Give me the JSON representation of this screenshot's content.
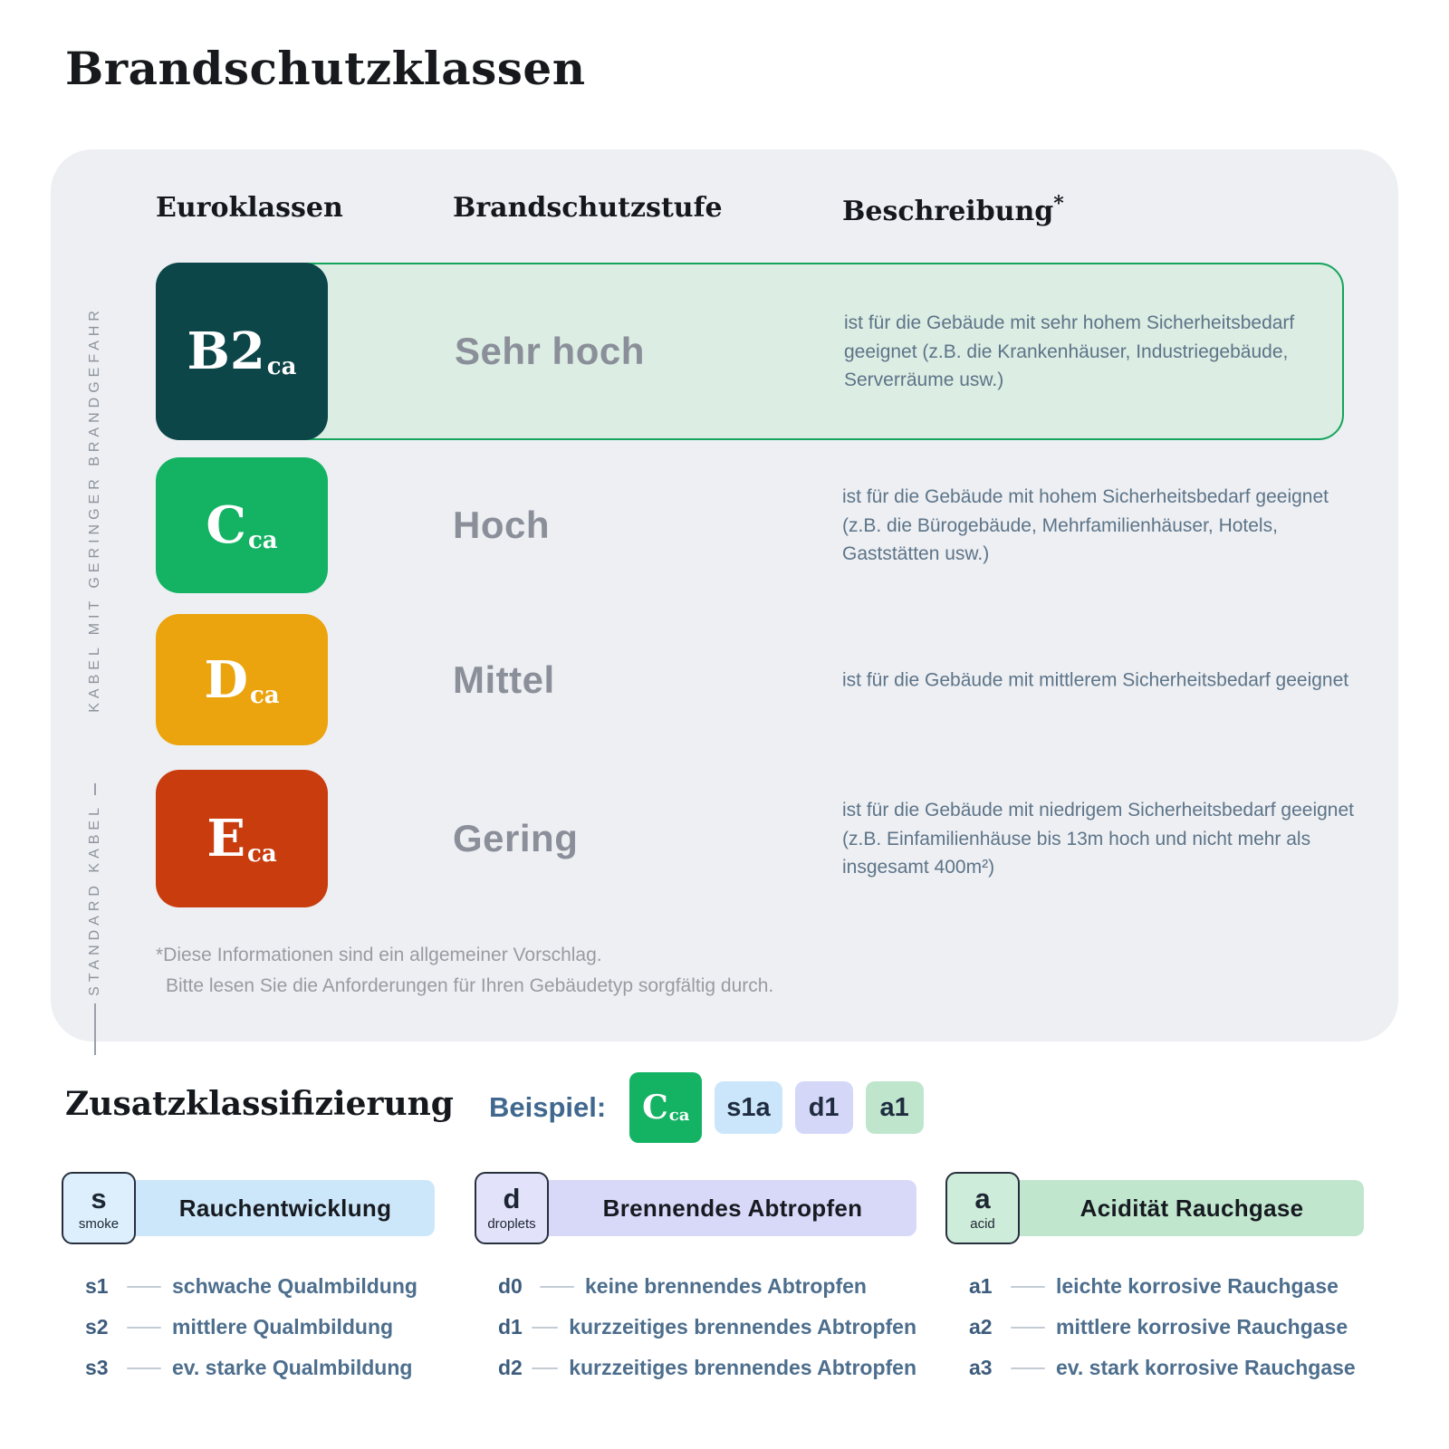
{
  "page": {
    "title": "Brandschutzklassen"
  },
  "panel": {
    "headers": {
      "col1": "Euroklassen",
      "col2": "Brandschutzstufe",
      "col3": "Beschreibung",
      "col3_sup": "*"
    },
    "side_labels": {
      "top": "KABEL MIT GERINGER BRANDGEFAHR",
      "bottom": "STANDARD KABEL"
    },
    "rows": [
      {
        "badge": "B2",
        "badge_sub": "ca",
        "stufe": "Sehr hoch",
        "desc": "ist für die Gebäude mit sehr hohem Sicherheitsbedarf geeignet (z.B. die Krankenhäuser, Industriegebäude, Serverräume usw.)"
      },
      {
        "badge": "C",
        "badge_sub": "ca",
        "stufe": "Hoch",
        "desc": "ist für die Gebäude mit hohem Sicherheitsbedarf geeignet (z.B. die Bürogebäude, Mehrfamilienhäuser, Hotels, Gaststätten usw.)"
      },
      {
        "badge": "D",
        "badge_sub": "ca",
        "stufe": "Mittel",
        "desc": "ist für die Gebäude mit mittlerem Sicherheitsbedarf geeignet"
      },
      {
        "badge": "E",
        "badge_sub": "ca",
        "stufe": "Gering",
        "desc": "ist für die Gebäude mit niedrigem Sicherheitsbedarf geeignet (z.B. Einfamilienhäuse bis 13m hoch und nicht mehr als insgesamt 400m²)"
      }
    ],
    "footnote_line1": "*Diese Informationen sind ein allgemeiner Vorschlag.",
    "footnote_line2": "Bitte lesen Sie die Anforderungen für Ihren Gebäudetyp sorgfältig durch."
  },
  "zusatz": {
    "title": "Zusatzklassifizierung",
    "beispiel_label": "Beispiel:",
    "chips": [
      {
        "text": "C",
        "sub": "ca"
      },
      {
        "text": "s1a"
      },
      {
        "text": "d1"
      },
      {
        "text": "a1"
      }
    ],
    "columns": [
      {
        "badge": "s",
        "badge_sub": "smoke",
        "header": "Rauchentwicklung",
        "items": [
          {
            "code": "s1",
            "text": "schwache Qualmbildung"
          },
          {
            "code": "s2",
            "text": "mittlere Qualmbildung"
          },
          {
            "code": "s3",
            "text": "ev. starke Qualmbildung"
          }
        ]
      },
      {
        "badge": "d",
        "badge_sub": "droplets",
        "header": "Brennendes Abtropfen",
        "items": [
          {
            "code": "d0",
            "text": "keine brennendes Abtropfen"
          },
          {
            "code": "d1",
            "text": "kurzzeitiges brennendes Abtropfen"
          },
          {
            "code": "d2",
            "text": "kurzzeitiges brennendes Abtropfen"
          }
        ]
      },
      {
        "badge": "a",
        "badge_sub": "acid",
        "header": "Acidität Rauchgase",
        "items": [
          {
            "code": "a1",
            "text": "leichte korrosive Rauchgase"
          },
          {
            "code": "a2",
            "text": "mittlere korrosive Rauchgase"
          },
          {
            "code": "a3",
            "text": "ev. stark korrosive Rauchgase"
          }
        ]
      }
    ]
  },
  "colors": {
    "b2ca": "#0d4649",
    "cca": "#14b363",
    "dca": "#eba40d",
    "eca": "#c93c0e",
    "row_highlight_bg": "#dcede3",
    "row_highlight_border": "#14a45c",
    "chip_c": "#14b363",
    "chip_s_bg": "#cbe5fa",
    "chip_d_bg": "#d5d7f8",
    "chip_a_bg": "#bfe6cd",
    "col_s_bar": "#cde7fa",
    "col_d_bar": "#d8d9f8",
    "col_a_bar": "#c0e6ce",
    "col_s_badge": "#ddeffc",
    "col_d_badge": "#e2e3fa",
    "col_a_badge": "#cdecd9"
  }
}
